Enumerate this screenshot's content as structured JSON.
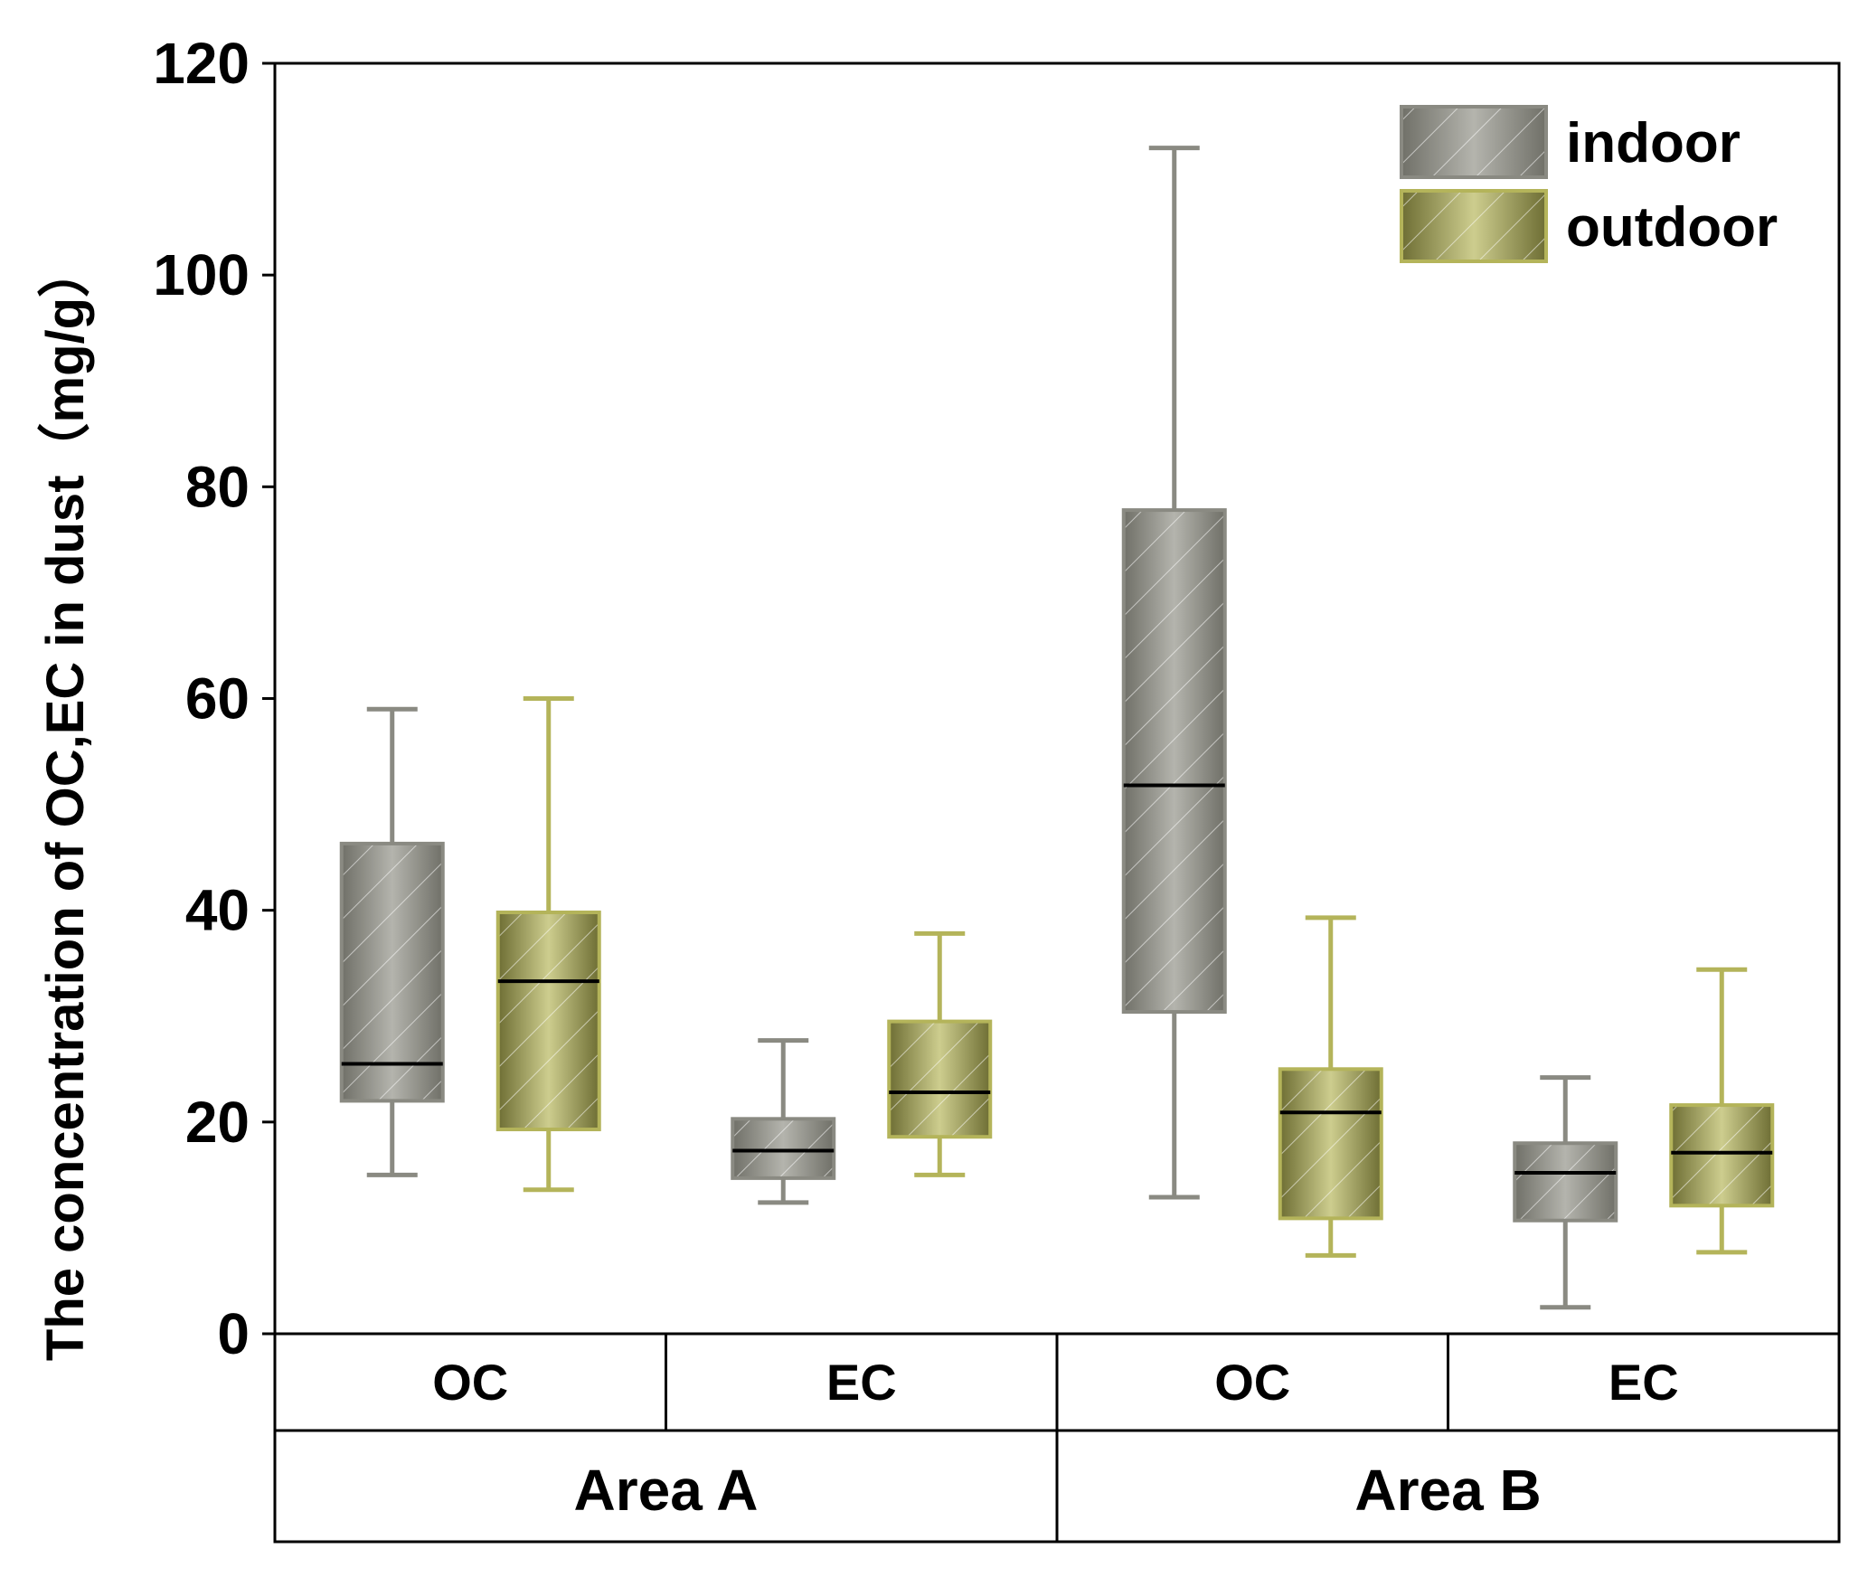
{
  "chart_data": {
    "type": "box",
    "ylabel": "The concentration of OC,EC in dust（mg/g）",
    "ylim": [
      0,
      120
    ],
    "yticks": [
      0,
      20,
      40,
      60,
      80,
      100,
      120
    ],
    "ytick_labels": [
      "0",
      "20",
      "40",
      "60",
      "80",
      "100",
      "120"
    ],
    "grid": false,
    "legend_position": "top-right",
    "categories": [
      {
        "group": "Area A",
        "label": "OC"
      },
      {
        "group": "Area A",
        "label": "EC"
      },
      {
        "group": "Area B",
        "label": "OC"
      },
      {
        "group": "Area B",
        "label": "EC"
      }
    ],
    "groups": [
      "Area A",
      "Area B"
    ],
    "series": [
      {
        "name": "indoor",
        "color": "#8a8a82",
        "stats": [
          {
            "min": 15,
            "q1": 22,
            "median": 25.5,
            "q3": 46.3,
            "max": 59
          },
          {
            "min": 12.4,
            "q1": 14.7,
            "median": 17.3,
            "q3": 20.3,
            "max": 27.7
          },
          {
            "min": 12.9,
            "q1": 30.4,
            "median": 51.8,
            "q3": 77.8,
            "max": 112
          },
          {
            "min": 2.5,
            "q1": 10.7,
            "median": 15.2,
            "q3": 18,
            "max": 24.2
          }
        ]
      },
      {
        "name": "outdoor",
        "color": "#b4b45a",
        "stats": [
          {
            "min": 13.6,
            "q1": 19.3,
            "median": 33.3,
            "q3": 39.8,
            "max": 60
          },
          {
            "min": 15,
            "q1": 18.6,
            "median": 22.8,
            "q3": 29.5,
            "max": 37.8
          },
          {
            "min": 7.4,
            "q1": 10.9,
            "median": 20.9,
            "q3": 25,
            "max": 39.3
          },
          {
            "min": 7.7,
            "q1": 12.1,
            "median": 17.1,
            "q3": 21.6,
            "max": 34.4
          }
        ]
      }
    ]
  }
}
